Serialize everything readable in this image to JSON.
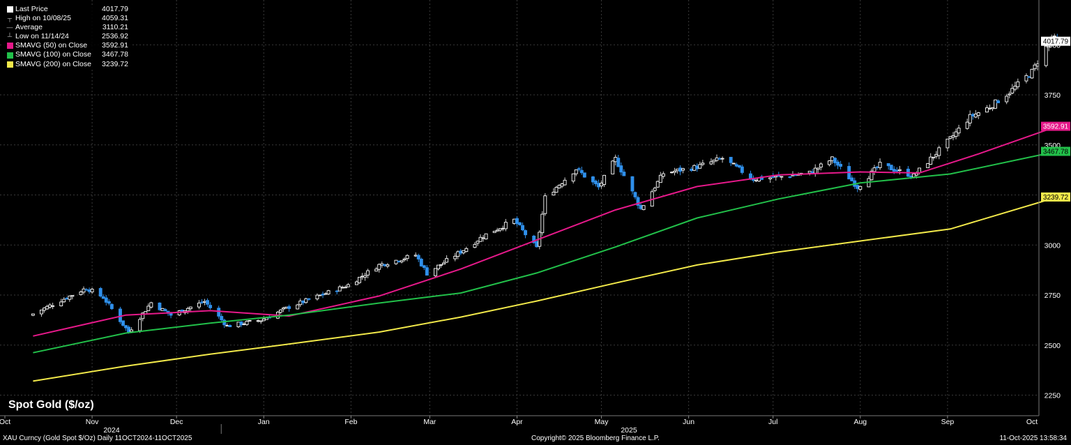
{
  "legend": [
    {
      "label": "Last Price",
      "value": "4017.79",
      "swatch": "#ffffff",
      "icon": "candle-icon"
    },
    {
      "label": "High on 10/08/25",
      "value": "4059.31",
      "swatch": null,
      "icon": "high-marker-icon"
    },
    {
      "label": "Average",
      "value": "3110.21",
      "swatch": null,
      "icon": "average-line-icon"
    },
    {
      "label": "Low on 11/14/24",
      "value": "2536.92",
      "swatch": null,
      "icon": "low-marker-icon"
    },
    {
      "label": "SMAVG (50)  on Close",
      "value": "3592.91",
      "swatch": "#e6198a",
      "icon": "swatch-icon"
    },
    {
      "label": "SMAVG (100)  on Close",
      "value": "3467.78",
      "swatch": "#22c04a",
      "icon": "swatch-icon"
    },
    {
      "label": "SMAVG (200)  on Close",
      "value": "3239.72",
      "swatch": "#f2e94a",
      "icon": "swatch-icon"
    }
  ],
  "title": "Spot Gold ($/oz)",
  "footer": {
    "left": "XAU Curncy (Gold Spot  $/Oz) Daily 11OCT2024-11OCT2025",
    "center": "Copyright© 2025 Bloomberg Finance L.P.",
    "right": "11-Oct-2025 13:58:34"
  },
  "colors": {
    "background": "#000000",
    "grid": "#3a3a3a",
    "up_candle": "#ffffff",
    "down_candle": "#2f8fea",
    "sma50": "#e6198a",
    "sma100": "#22c04a",
    "sma200": "#f2e94a"
  },
  "chart_data": {
    "type": "candlestick",
    "title": "Spot Gold ($/oz)",
    "ylim": [
      2180,
      4200
    ],
    "y_ticks": [
      2250,
      2500,
      2750,
      3000,
      3250,
      3500,
      3750,
      4000
    ],
    "x_months": [
      "Oct",
      "Nov",
      "Dec",
      "Jan",
      "Feb",
      "Mar",
      "Apr",
      "May",
      "Jun",
      "Jul",
      "Aug",
      "Sep",
      "Oct"
    ],
    "x_years": [
      "2024",
      "2025"
    ],
    "grid": true,
    "legend_position": "top-left",
    "price_labels": [
      {
        "value": 4017.79,
        "text": "4017.79",
        "color": "#ffffff",
        "text_color": "#000000"
      },
      {
        "value": 3592.91,
        "text": "3592.91",
        "color": "#e6198a",
        "text_color": "#ffffff"
      },
      {
        "value": 3467.78,
        "text": "3467.78",
        "color": "#22c04a",
        "text_color": "#000000"
      },
      {
        "value": 3239.72,
        "text": "3239.72",
        "color": "#f2e94a",
        "text_color": "#000000"
      }
    ],
    "close_anchors": [
      [
        "2024-10-11",
        2656
      ],
      [
        "2024-10-30",
        2785
      ],
      [
        "2024-11-05",
        2738
      ],
      [
        "2024-11-14",
        2565
      ],
      [
        "2024-11-22",
        2712
      ],
      [
        "2024-11-29",
        2650
      ],
      [
        "2024-12-11",
        2718
      ],
      [
        "2024-12-19",
        2595
      ],
      [
        "2024-12-31",
        2625
      ],
      [
        "2025-01-10",
        2690
      ],
      [
        "2025-01-31",
        2800
      ],
      [
        "2025-02-11",
        2900
      ],
      [
        "2025-02-24",
        2950
      ],
      [
        "2025-02-28",
        2858
      ],
      [
        "2025-03-14",
        2985
      ],
      [
        "2025-03-20",
        3045
      ],
      [
        "2025-03-31",
        3124
      ],
      [
        "2025-04-08",
        2983
      ],
      [
        "2025-04-11",
        3237
      ],
      [
        "2025-04-22",
        3380
      ],
      [
        "2025-04-30",
        3288
      ],
      [
        "2025-05-06",
        3430
      ],
      [
        "2025-05-15",
        3180
      ],
      [
        "2025-05-23",
        3358
      ],
      [
        "2025-06-04",
        3390
      ],
      [
        "2025-06-13",
        3433
      ],
      [
        "2025-06-24",
        3330
      ],
      [
        "2025-07-03",
        3340
      ],
      [
        "2025-07-14",
        3360
      ],
      [
        "2025-07-22",
        3430
      ],
      [
        "2025-07-31",
        3290
      ],
      [
        "2025-08-08",
        3400
      ],
      [
        "2025-08-20",
        3345
      ],
      [
        "2025-09-02",
        3530
      ],
      [
        "2025-09-09",
        3640
      ],
      [
        "2025-09-16",
        3690
      ],
      [
        "2025-09-23",
        3763
      ],
      [
        "2025-10-01",
        3866
      ],
      [
        "2025-10-08",
        4040
      ],
      [
        "2025-10-10",
        4017.79
      ]
    ],
    "series": [
      {
        "name": "SMAVG (50)  on Close",
        "points": [
          [
            "2024-10-11",
            2545
          ],
          [
            "2024-11-13",
            2650
          ],
          [
            "2024-12-13",
            2672
          ],
          [
            "2025-01-10",
            2645
          ],
          [
            "2025-02-11",
            2745
          ],
          [
            "2025-03-12",
            2880
          ],
          [
            "2025-04-08",
            3025
          ],
          [
            "2025-05-06",
            3175
          ],
          [
            "2025-06-04",
            3292
          ],
          [
            "2025-07-03",
            3350
          ],
          [
            "2025-08-01",
            3365
          ],
          [
            "2025-08-22",
            3360
          ],
          [
            "2025-09-12",
            3455
          ],
          [
            "2025-10-10",
            3592.91
          ]
        ]
      },
      {
        "name": "SMAVG (100)  on Close",
        "points": [
          [
            "2024-10-11",
            2462
          ],
          [
            "2024-11-13",
            2560
          ],
          [
            "2024-12-13",
            2610
          ],
          [
            "2025-01-10",
            2650
          ],
          [
            "2025-02-11",
            2710
          ],
          [
            "2025-03-12",
            2760
          ],
          [
            "2025-04-08",
            2860
          ],
          [
            "2025-05-06",
            2990
          ],
          [
            "2025-06-04",
            3135
          ],
          [
            "2025-07-03",
            3230
          ],
          [
            "2025-08-01",
            3310
          ],
          [
            "2025-09-02",
            3355
          ],
          [
            "2025-10-10",
            3467.78
          ]
        ]
      },
      {
        "name": "SMAVG (200)  on Close",
        "points": [
          [
            "2024-10-11",
            2320
          ],
          [
            "2024-11-13",
            2395
          ],
          [
            "2024-12-13",
            2455
          ],
          [
            "2025-01-10",
            2505
          ],
          [
            "2025-02-11",
            2565
          ],
          [
            "2025-03-12",
            2640
          ],
          [
            "2025-04-08",
            2720
          ],
          [
            "2025-05-06",
            2810
          ],
          [
            "2025-06-04",
            2900
          ],
          [
            "2025-07-03",
            2965
          ],
          [
            "2025-08-01",
            3020
          ],
          [
            "2025-09-02",
            3080
          ],
          [
            "2025-10-10",
            3239.72
          ]
        ]
      }
    ]
  }
}
